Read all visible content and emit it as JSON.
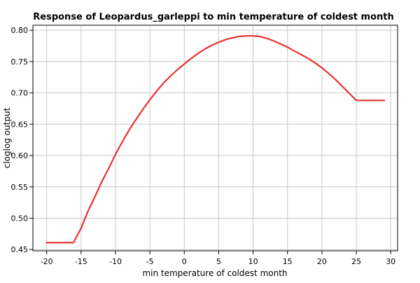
{
  "chart_data": {
    "type": "line",
    "title": "Response of Leopardus_garleppi to min temperature of coldest month",
    "xlabel": "min temperature of coldest month",
    "ylabel": "cloglog output",
    "xlim": [
      -22,
      31
    ],
    "ylim": [
      0.448,
      0.808
    ],
    "xticks": [
      -20,
      -15,
      -10,
      -5,
      0,
      5,
      10,
      15,
      20,
      25,
      30
    ],
    "yticks": [
      0.45,
      0.5,
      0.55,
      0.6,
      0.65,
      0.7,
      0.75,
      0.8
    ],
    "ytick_labels": [
      "0.45",
      "0.50",
      "0.55",
      "0.60",
      "0.65",
      "0.70",
      "0.75",
      "0.80"
    ],
    "grid": true,
    "series": [
      {
        "color": "#e8322e",
        "x": [
          -20,
          -16.1,
          -15,
          -14,
          -13,
          -12,
          -11,
          -10,
          -9,
          -8,
          -7,
          -6,
          -5,
          -4,
          -3,
          -2,
          -1,
          0,
          1,
          2,
          3,
          4,
          5,
          6,
          7,
          8,
          9,
          10,
          11,
          12,
          13,
          14,
          15,
          16,
          17,
          18,
          19,
          20,
          21,
          22,
          23,
          24,
          25,
          29.1
        ],
        "y": [
          0.461,
          0.461,
          0.484,
          0.511,
          0.534,
          0.558,
          0.579,
          0.602,
          0.622,
          0.641,
          0.658,
          0.674,
          0.689,
          0.703,
          0.716,
          0.727,
          0.737,
          0.746,
          0.755,
          0.763,
          0.77,
          0.776,
          0.781,
          0.785,
          0.788,
          0.79,
          0.791,
          0.791,
          0.79,
          0.787,
          0.783,
          0.778,
          0.773,
          0.767,
          0.761,
          0.755,
          0.748,
          0.74,
          0.731,
          0.721,
          0.71,
          0.699,
          0.688,
          0.688
        ]
      }
    ]
  }
}
